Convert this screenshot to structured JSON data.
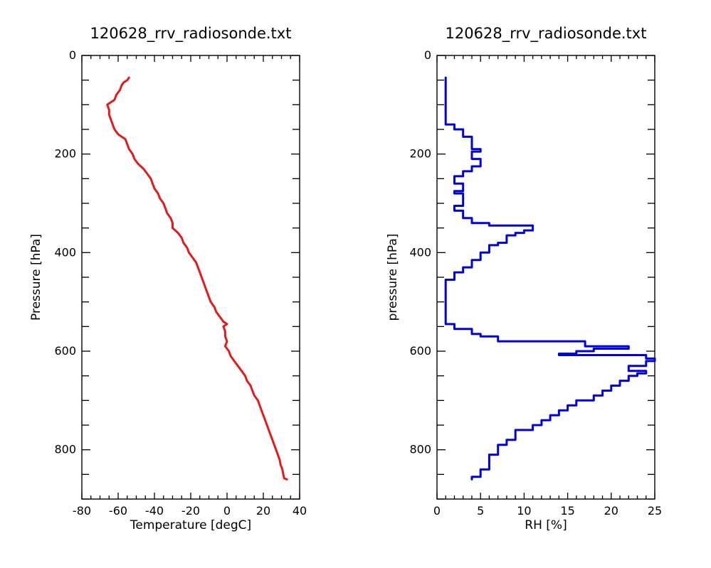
{
  "chart_data": [
    {
      "type": "line",
      "title": "120628_rrv_radiosonde.txt",
      "xlabel": "Temperature [degC]",
      "ylabel": "Pressure [hPa]",
      "xlim": [
        -80,
        40
      ],
      "ylim": [
        900,
        0
      ],
      "y_inverted": true,
      "x_ticks": [
        -80,
        -60,
        -40,
        -20,
        0,
        20,
        40
      ],
      "y_ticks": [
        0,
        200,
        400,
        600,
        800
      ],
      "x_minor_step": 5,
      "y_minor_step": 50,
      "grid": false,
      "color": "#e41a1c",
      "series": [
        {
          "points": [
            [
              -54,
              45
            ],
            [
              -55,
              50
            ],
            [
              -57,
              55
            ],
            [
              -58,
              60
            ],
            [
              -59,
              70
            ],
            [
              -61,
              80
            ],
            [
              -62,
              90
            ],
            [
              -64,
              95
            ],
            [
              -66,
              100
            ],
            [
              -65,
              110
            ],
            [
              -65,
              120
            ],
            [
              -64,
              130
            ],
            [
              -63,
              140
            ],
            [
              -62,
              150
            ],
            [
              -60,
              160
            ],
            [
              -56,
              170
            ],
            [
              -55,
              180
            ],
            [
              -54,
              190
            ],
            [
              -52,
              200
            ],
            [
              -51,
              210
            ],
            [
              -49,
              220
            ],
            [
              -46,
              230
            ],
            [
              -44,
              240
            ],
            [
              -42,
              250
            ],
            [
              -41,
              260
            ],
            [
              -40,
              270
            ],
            [
              -38,
              280
            ],
            [
              -37,
              290
            ],
            [
              -35,
              300
            ],
            [
              -34,
              310
            ],
            [
              -33,
              320
            ],
            [
              -31,
              330
            ],
            [
              -30,
              340
            ],
            [
              -30,
              350
            ],
            [
              -27,
              360
            ],
            [
              -25,
              370
            ],
            [
              -24,
              380
            ],
            [
              -22,
              390
            ],
            [
              -21,
              400
            ],
            [
              -19,
              410
            ],
            [
              -17,
              420
            ],
            [
              -16,
              430
            ],
            [
              -15,
              440
            ],
            [
              -14,
              450
            ],
            [
              -13,
              460
            ],
            [
              -12,
              470
            ],
            [
              -11,
              480
            ],
            [
              -10,
              490
            ],
            [
              -9,
              500
            ],
            [
              -7,
              510
            ],
            [
              -6,
              520
            ],
            [
              -4,
              530
            ],
            [
              -2,
              540
            ],
            [
              0,
              545
            ],
            [
              -2,
              550
            ],
            [
              -1,
              560
            ],
            [
              -1,
              570
            ],
            [
              0,
              580
            ],
            [
              -1,
              590
            ],
            [
              1,
              600
            ],
            [
              2,
              610
            ],
            [
              4,
              620
            ],
            [
              6,
              630
            ],
            [
              8,
              640
            ],
            [
              10,
              650
            ],
            [
              11,
              660
            ],
            [
              13,
              670
            ],
            [
              14,
              680
            ],
            [
              15,
              690
            ],
            [
              17,
              700
            ],
            [
              18,
              710
            ],
            [
              19,
              720
            ],
            [
              20,
              730
            ],
            [
              21,
              740
            ],
            [
              22,
              750
            ],
            [
              23,
              760
            ],
            [
              24,
              770
            ],
            [
              25,
              780
            ],
            [
              26,
              790
            ],
            [
              27,
              800
            ],
            [
              28,
              810
            ],
            [
              29,
              820
            ],
            [
              29.5,
              830
            ],
            [
              30.5,
              840
            ],
            [
              31,
              850
            ],
            [
              31.5,
              858
            ],
            [
              33,
              860
            ]
          ]
        }
      ]
    },
    {
      "type": "line",
      "title": "120628_rrv_radiosonde.txt",
      "xlabel": "RH [%]",
      "ylabel": "pressure [hPa]",
      "xlim": [
        0,
        25
      ],
      "ylim": [
        900,
        0
      ],
      "y_inverted": true,
      "x_ticks": [
        0,
        5,
        10,
        15,
        20,
        25
      ],
      "y_ticks": [
        0,
        200,
        400,
        600,
        800
      ],
      "x_minor_step": 1,
      "y_minor_step": 50,
      "grid": false,
      "color": "#0000dd",
      "series": [
        {
          "points": [
            [
              1,
              45
            ],
            [
              1,
              140
            ],
            [
              2,
              140
            ],
            [
              2,
              150
            ],
            [
              3,
              150
            ],
            [
              3,
              165
            ],
            [
              4,
              165
            ],
            [
              4,
              190
            ],
            [
              5,
              190
            ],
            [
              5,
              195
            ],
            [
              4,
              195
            ],
            [
              4,
              210
            ],
            [
              5,
              210
            ],
            [
              5,
              225
            ],
            [
              4,
              225
            ],
            [
              4,
              235
            ],
            [
              3,
              235
            ],
            [
              3,
              245
            ],
            [
              2,
              245
            ],
            [
              2,
              260
            ],
            [
              3,
              260
            ],
            [
              3,
              275
            ],
            [
              2,
              275
            ],
            [
              2,
              280
            ],
            [
              3,
              280
            ],
            [
              3,
              305
            ],
            [
              2,
              305
            ],
            [
              2,
              315
            ],
            [
              3,
              315
            ],
            [
              3,
              330
            ],
            [
              4,
              330
            ],
            [
              4,
              340
            ],
            [
              6,
              340
            ],
            [
              6,
              345
            ],
            [
              11,
              345
            ],
            [
              11,
              355
            ],
            [
              10,
              355
            ],
            [
              10,
              360
            ],
            [
              9,
              360
            ],
            [
              9,
              365
            ],
            [
              8,
              365
            ],
            [
              8,
              380
            ],
            [
              7,
              380
            ],
            [
              7,
              385
            ],
            [
              6,
              385
            ],
            [
              6,
              400
            ],
            [
              5,
              400
            ],
            [
              5,
              415
            ],
            [
              4,
              415
            ],
            [
              4,
              430
            ],
            [
              3,
              430
            ],
            [
              3,
              440
            ],
            [
              2,
              440
            ],
            [
              2,
              455
            ],
            [
              1,
              455
            ],
            [
              1,
              545
            ],
            [
              2,
              545
            ],
            [
              2,
              555
            ],
            [
              4,
              555
            ],
            [
              4,
              565
            ],
            [
              5,
              565
            ],
            [
              5,
              570
            ],
            [
              7,
              570
            ],
            [
              7,
              580
            ],
            [
              17,
              580
            ],
            [
              17,
              590
            ],
            [
              22,
              590
            ],
            [
              22,
              595
            ],
            [
              18,
              595
            ],
            [
              18,
              600
            ],
            [
              16,
              600
            ],
            [
              16,
              605
            ],
            [
              14,
              605
            ],
            [
              14,
              608
            ],
            [
              24,
              608
            ],
            [
              24,
              615
            ],
            [
              25,
              615
            ],
            [
              25,
              620
            ],
            [
              24,
              620
            ],
            [
              24,
              630
            ],
            [
              22,
              630
            ],
            [
              22,
              640
            ],
            [
              24,
              640
            ],
            [
              24,
              645
            ],
            [
              23,
              645
            ],
            [
              23,
              650
            ],
            [
              22,
              650
            ],
            [
              22,
              660
            ],
            [
              21,
              660
            ],
            [
              21,
              670
            ],
            [
              20,
              670
            ],
            [
              20,
              680
            ],
            [
              19,
              680
            ],
            [
              19,
              690
            ],
            [
              18,
              690
            ],
            [
              18,
              700
            ],
            [
              16,
              700
            ],
            [
              16,
              710
            ],
            [
              15,
              710
            ],
            [
              15,
              720
            ],
            [
              14,
              720
            ],
            [
              14,
              730
            ],
            [
              13,
              730
            ],
            [
              13,
              740
            ],
            [
              12,
              740
            ],
            [
              12,
              750
            ],
            [
              11,
              750
            ],
            [
              11,
              760
            ],
            [
              9,
              760
            ],
            [
              9,
              780
            ],
            [
              8,
              780
            ],
            [
              8,
              790
            ],
            [
              7,
              790
            ],
            [
              7,
              810
            ],
            [
              6,
              810
            ],
            [
              6,
              840
            ],
            [
              5,
              840
            ],
            [
              5,
              855
            ],
            [
              4,
              855
            ],
            [
              4,
              860
            ]
          ]
        }
      ]
    }
  ]
}
